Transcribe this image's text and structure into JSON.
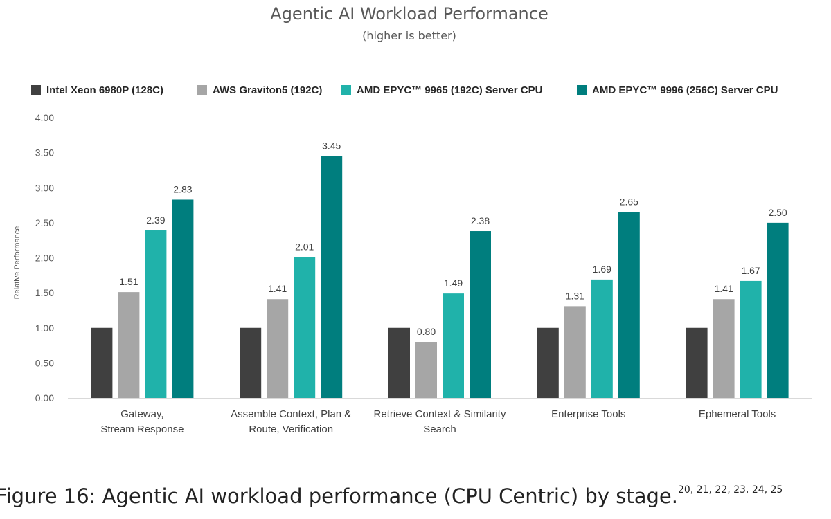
{
  "chart_data": {
    "type": "bar",
    "title": "Agentic AI Workload Performance",
    "subtitle": "(higher is better)",
    "ylabel": "Relative Performance",
    "xlabel": "",
    "ylim": [
      0,
      4
    ],
    "yticks": [
      "0.00",
      "0.50",
      "1.00",
      "1.50",
      "2.00",
      "2.50",
      "3.00",
      "3.50",
      "4.00"
    ],
    "grid": false,
    "legend_position": "top",
    "categories": [
      [
        "Gateway,",
        "Stream Response"
      ],
      [
        "Assemble Context, Plan &",
        "Route, Verification"
      ],
      [
        "Retrieve Context & Similarity",
        "Search"
      ],
      [
        "Enterprise Tools"
      ],
      [
        "Ephemeral Tools"
      ]
    ],
    "series": [
      {
        "name": "Intel Xeon 6980P (128C)",
        "color": "#404040",
        "values": [
          1.0,
          1.0,
          1.0,
          1.0,
          1.0
        ],
        "labels": [
          null,
          null,
          null,
          null,
          null
        ]
      },
      {
        "name": "AWS Graviton5 (192C)",
        "color": "#a6a6a6",
        "values": [
          1.51,
          1.41,
          0.8,
          1.31,
          1.41
        ],
        "labels": [
          "1.51",
          "1.41",
          "0.80",
          "1.31",
          "1.41"
        ]
      },
      {
        "name": "AMD EPYC™ 9965 (192C) Server CPU",
        "color": "#20b2aa",
        "values": [
          2.39,
          2.01,
          1.49,
          1.69,
          1.67
        ],
        "labels": [
          "2.39",
          "2.01",
          "1.49",
          "1.69",
          "1.67"
        ]
      },
      {
        "name": "AMD EPYC™ 9996 (256C) Server CPU",
        "color": "#007e7e",
        "values": [
          2.83,
          3.45,
          2.38,
          2.65,
          2.5
        ],
        "labels": [
          "2.83",
          "3.45",
          "2.38",
          "2.65",
          "2.50"
        ]
      }
    ]
  },
  "caption": {
    "text": "Figure 16: Agentic AI workload performance (CPU Centric) by stage.",
    "refs": "20, 21, 22, 23, 24, 25"
  }
}
